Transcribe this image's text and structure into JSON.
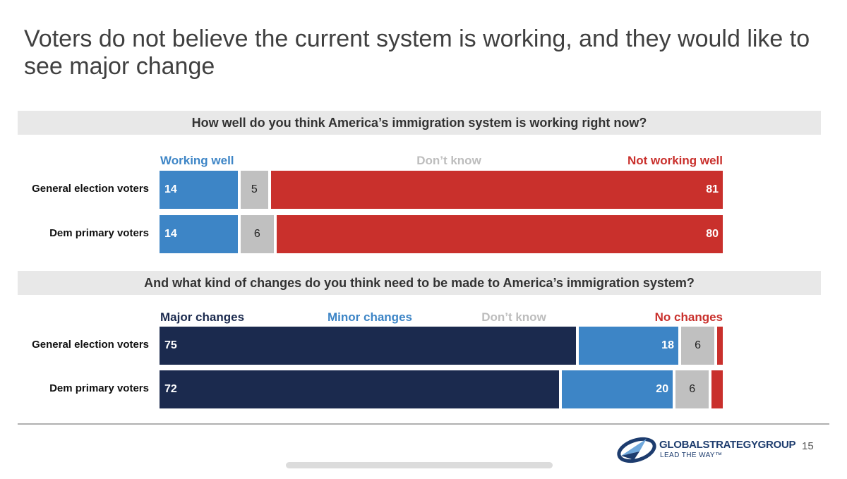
{
  "slide": {
    "title": "Voters do not believe the current system is working, and they would like to see major change",
    "page_number": "15"
  },
  "logo": {
    "name": "GLOBALSTRATEGYGROUP",
    "tagline": "LEAD THE WAY™"
  },
  "colors": {
    "working_well": "#3d85c6",
    "dont_know": "#c0c0c0",
    "not_working_well": "#c9302c",
    "major_changes": "#1b2a4e",
    "minor_changes": "#3d85c6",
    "no_changes": "#c9302c"
  },
  "chart_data": [
    {
      "type": "bar",
      "orientation": "horizontal",
      "stacked": true,
      "title": "How well do you think America’s immigration system is working right now?",
      "categories": [
        "General election voters",
        "Dem primary voters"
      ],
      "series": [
        {
          "name": "Working well",
          "values": [
            14,
            14
          ],
          "color": "#3d85c6",
          "label_color": "#3d85c6"
        },
        {
          "name": "Don’t know",
          "values": [
            5,
            6
          ],
          "color": "#c0c0c0",
          "label_color": "#bdbdbd"
        },
        {
          "name": "Not working well",
          "values": [
            81,
            80
          ],
          "color": "#c9302c",
          "label_color": "#c9302c"
        }
      ],
      "xlim": [
        0,
        100
      ]
    },
    {
      "type": "bar",
      "orientation": "horizontal",
      "stacked": true,
      "title": "And what kind of changes do you think need to be made to America’s immigration system?",
      "categories": [
        "General election voters",
        "Dem primary voters"
      ],
      "series": [
        {
          "name": "Major changes",
          "values": [
            75,
            72
          ],
          "color": "#1b2a4e",
          "label_color": "#1b2a4e"
        },
        {
          "name": "Minor changes",
          "values": [
            18,
            20
          ],
          "color": "#3d85c6",
          "label_color": "#3d85c6"
        },
        {
          "name": "Don’t know",
          "values": [
            6,
            6
          ],
          "color": "#c0c0c0",
          "label_color": "#bdbdbd"
        },
        {
          "name": "No changes",
          "values": [
            1,
            2
          ],
          "color": "#c9302c",
          "label_color": "#c9302c"
        }
      ],
      "xlim": [
        0,
        100
      ]
    }
  ]
}
